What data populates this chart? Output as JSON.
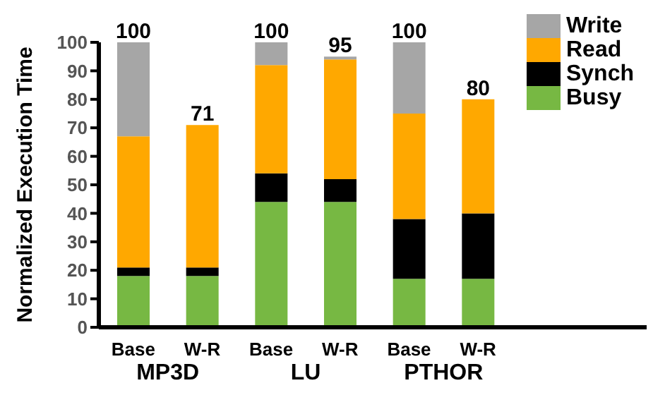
{
  "chart_data": {
    "type": "bar",
    "stacked": true,
    "ylabel": "Normalized Execution Time",
    "categories": [
      "Base",
      "W-R",
      "Base",
      "W-R",
      "Base",
      "W-R"
    ],
    "annotations": [
      "MP3D",
      "LU",
      "PTHOR"
    ],
    "series": [
      {
        "name": "Busy",
        "color": "#77b843",
        "values": [
          18,
          18,
          44,
          44,
          17,
          17
        ]
      },
      {
        "name": "Synch",
        "color": "#000000",
        "values": [
          3,
          3,
          10,
          8,
          21,
          23
        ]
      },
      {
        "name": "Read",
        "color": "#ffa800",
        "values": [
          46,
          50,
          38,
          42,
          37,
          40
        ]
      },
      {
        "name": "Write",
        "color": "#a6a6a6",
        "values": [
          33,
          0,
          8,
          1,
          25,
          0
        ]
      }
    ],
    "totals": [
      "100",
      "71",
      "100",
      "95",
      "100",
      "80"
    ],
    "ylim": [
      0,
      100
    ],
    "yticks": [
      0,
      10,
      20,
      30,
      40,
      50,
      60,
      70,
      80,
      90,
      100
    ],
    "grid": false,
    "legend": "top right"
  }
}
